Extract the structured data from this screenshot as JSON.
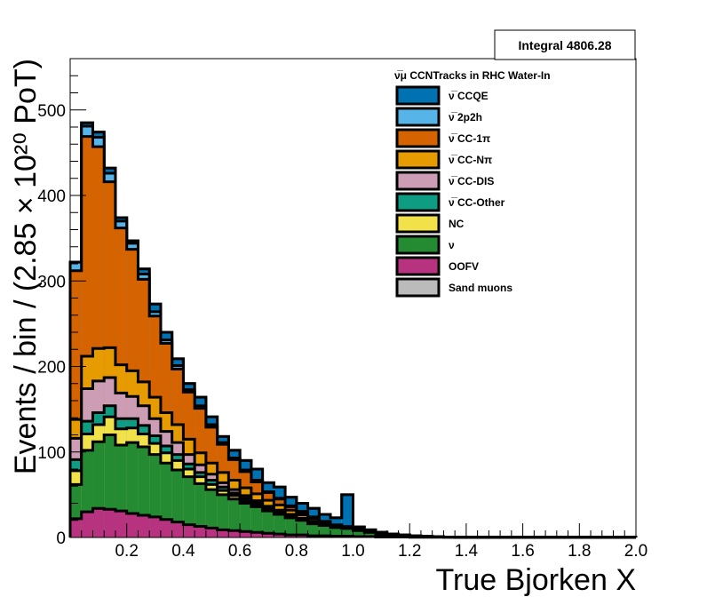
{
  "chart_data": {
    "type": "bar",
    "stacked": true,
    "title": "",
    "xlabel": "True Bjorken X",
    "ylabel": "Events / bin / (2.85 × 10²⁰ PoT)",
    "xlim": [
      0,
      2.0
    ],
    "ylim": [
      0,
      560
    ],
    "bin_width": 0.04,
    "x_ticks": [
      "0.2",
      "0.4",
      "0.6",
      "0.8",
      "1.0",
      "1.2",
      "1.4",
      "1.6",
      "1.8",
      "2.0"
    ],
    "y_ticks": [
      "0",
      "100",
      "200",
      "300",
      "400",
      "500"
    ],
    "legend_title": "ν̅μ CCNTracks in RHC Water-In",
    "integral_label": "Integral 4806.28",
    "legend_placement": "top-right",
    "grid": false,
    "totals": [
      322,
      485,
      474,
      432,
      374,
      347,
      314,
      273,
      240,
      209,
      180,
      164,
      141,
      118,
      102,
      90,
      80,
      64,
      59,
      47,
      40,
      34,
      27,
      23,
      50,
      12,
      8,
      6,
      4,
      3,
      2,
      1.5,
      1,
      0.5,
      0.3,
      0.2,
      0.2,
      0.1,
      0.1,
      0.1,
      0.1,
      0.1,
      0.1,
      0.1,
      0.1,
      0.1,
      0.1,
      0.1,
      0.1,
      0.1
    ],
    "series": [
      {
        "name": "OOFV",
        "color": "#B8337F",
        "values": [
          22,
          30,
          34,
          33,
          31,
          28,
          26,
          24,
          21,
          18,
          15,
          13,
          11,
          9,
          8,
          7,
          6,
          5,
          4,
          3,
          3,
          2,
          2,
          1.5,
          1.5,
          1,
          1,
          0.5,
          0.5,
          0.5,
          0.3,
          0.2,
          0.2,
          0.1,
          0.1,
          0,
          0,
          0,
          0,
          0,
          0,
          0,
          0,
          0,
          0,
          0,
          0,
          0,
          0,
          0
        ]
      },
      {
        "name": "ν",
        "color": "#258B33",
        "values": [
          40,
          72,
          78,
          87,
          77,
          83,
          80,
          73,
          66,
          61,
          56,
          50,
          45,
          41,
          37,
          33,
          30,
          26,
          23,
          20,
          17,
          14,
          12,
          10,
          9,
          7,
          5,
          3,
          2,
          1.5,
          1,
          0.8,
          0.6,
          0.4,
          0.2,
          0.2,
          0.2,
          0.1,
          0.1,
          0.1,
          0.1,
          0.1,
          0.1,
          0.1,
          0.1,
          0.1,
          0.1,
          0.1,
          0.1,
          0.1
        ]
      },
      {
        "name": "NC",
        "color": "#F2E24A",
        "values": [
          16,
          19,
          20,
          21,
          19,
          17,
          15,
          13,
          12,
          11,
          9,
          8,
          6,
          5,
          4,
          3,
          3,
          2,
          2,
          1.5,
          1,
          1,
          0.5,
          0.5,
          0.5,
          0.3,
          0.2,
          0.1,
          0.1,
          0.1,
          0.1,
          0,
          0,
          0,
          0,
          0,
          0,
          0,
          0,
          0,
          0,
          0,
          0,
          0,
          0,
          0,
          0,
          0,
          0,
          0
        ]
      },
      {
        "name": "ν̅ CC-Other",
        "color": "#0E9C83",
        "values": [
          13,
          15,
          14,
          13,
          12,
          11,
          10,
          9,
          8,
          7,
          6,
          5,
          5,
          4,
          3,
          3,
          2,
          2,
          2,
          1.5,
          1,
          1,
          0.5,
          0.5,
          0.3,
          0.2,
          0.2,
          0.1,
          0.1,
          0.1,
          0,
          0,
          0,
          0,
          0,
          0,
          0,
          0,
          0,
          0,
          0,
          0,
          0,
          0,
          0,
          0,
          0,
          0,
          0,
          0
        ]
      },
      {
        "name": "ν̅ CC-DIS",
        "color": "#CC9DB4",
        "values": [
          25,
          38,
          37,
          33,
          30,
          26,
          23,
          20,
          17,
          14,
          11,
          9,
          7,
          5,
          4,
          3,
          2,
          1.5,
          1,
          1,
          0.5,
          0.5,
          0.3,
          0.2,
          0.2,
          0.1,
          0,
          0,
          0,
          0,
          0,
          0,
          0,
          0,
          0,
          0,
          0,
          0,
          0,
          0,
          0,
          0,
          0,
          0,
          0,
          0,
          0,
          0,
          0,
          0
        ]
      },
      {
        "name": "ν̅ CC-Nπ",
        "color": "#E69B00",
        "values": [
          22,
          38,
          38,
          35,
          33,
          30,
          28,
          25,
          22,
          21,
          18,
          14,
          13,
          12,
          11,
          9,
          8,
          7,
          6,
          5,
          4,
          3,
          2,
          1,
          0.5,
          0.3,
          0.2,
          0.1,
          0.1,
          0,
          0,
          0,
          0,
          0,
          0,
          0,
          0,
          0,
          0,
          0,
          0,
          0,
          0,
          0,
          0,
          0,
          0,
          0,
          0,
          0
        ]
      },
      {
        "name": "ν̅ CC-1π",
        "color": "#D46300",
        "values": [
          174,
          257,
          236,
          194,
          160,
          142,
          120,
          95,
          81,
          65,
          55,
          52,
          42,
          33,
          24,
          19,
          14,
          9,
          7,
          4,
          3,
          2,
          1,
          0.8,
          0.5,
          0.3,
          0.2,
          0.1,
          0,
          0,
          0,
          0,
          0,
          0,
          0,
          0,
          0,
          0,
          0,
          0,
          0,
          0,
          0,
          0,
          0,
          0,
          0,
          0,
          0,
          0
        ]
      },
      {
        "name": "ν̅ 2p2h",
        "color": "#56B4E9",
        "values": [
          10,
          12,
          11,
          10,
          8,
          7,
          6,
          5,
          4,
          4,
          3,
          3,
          3,
          2,
          2,
          2,
          2,
          1,
          1,
          1,
          1,
          0.5,
          0.5,
          0.3,
          0.3,
          0.2,
          0.2,
          0.1,
          0.1,
          0.1,
          0.1,
          0.1,
          0,
          0,
          0,
          0,
          0,
          0,
          0,
          0,
          0,
          0,
          0,
          0,
          0,
          0,
          0,
          0,
          0,
          0
        ]
      },
      {
        "name": "ν̅ CCQE",
        "color": "#0072B2",
        "values": [
          0,
          4,
          6,
          6,
          4,
          3,
          6,
          9,
          9,
          8,
          7,
          10,
          9,
          7,
          9,
          11,
          13,
          10.5,
          13,
          10,
          9.5,
          10,
          8.2,
          8.2,
          37.2,
          2.9,
          2,
          2.1,
          1.1,
          0.7,
          0.5,
          0.4,
          0.2,
          0,
          0,
          0,
          0,
          0,
          0,
          0,
          0,
          0,
          0,
          0,
          0,
          0,
          0,
          0,
          0,
          0
        ]
      },
      {
        "name": "Sand muons",
        "color": "#BBBBBB",
        "values": [
          0,
          0,
          0,
          0,
          0,
          0,
          0,
          0,
          0,
          0,
          0,
          0,
          0,
          0,
          0,
          0,
          0,
          0,
          0,
          0,
          0,
          0,
          0,
          0,
          0,
          0,
          0,
          0,
          0,
          0,
          0,
          0,
          0,
          0,
          0,
          0,
          0,
          0,
          0,
          0,
          0,
          0,
          0,
          0,
          0,
          0,
          0,
          0,
          0,
          0
        ]
      }
    ],
    "legend_order": [
      "ν̅ CCQE",
      "ν̅ 2p2h",
      "ν̅ CC-1π",
      "ν̅ CC-Nπ",
      "ν̅ CC-DIS",
      "ν̅ CC-Other",
      "NC",
      "ν",
      "OOFV",
      "Sand muons"
    ]
  }
}
